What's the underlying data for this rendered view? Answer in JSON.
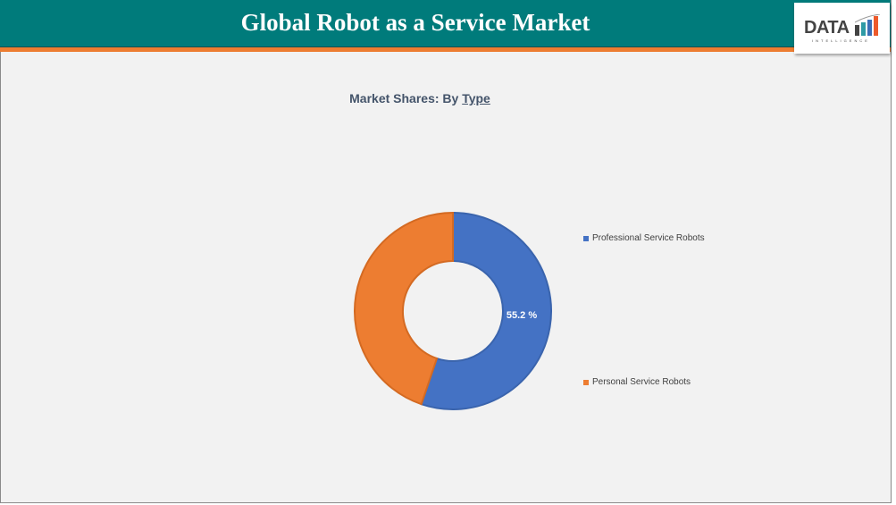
{
  "header": {
    "title": "Global Robot as a Service Market",
    "logo_text": "DATA",
    "logo_subtext": "INTELLIGENCE"
  },
  "colors": {
    "header": "#007b7b",
    "accent": "#ed7d31",
    "professional": "#4472c4",
    "personal": "#ed7d31"
  },
  "chart_data": {
    "type": "pie",
    "variant": "donut",
    "title_prefix": "Market Shares: By",
    "title_link": "Type",
    "categories": [
      "Professional Service Robots",
      "Personal Service Robots"
    ],
    "values": [
      55.2,
      44.8
    ],
    "data_labels": [
      "55.2 %",
      ""
    ],
    "legend_position": "right"
  }
}
